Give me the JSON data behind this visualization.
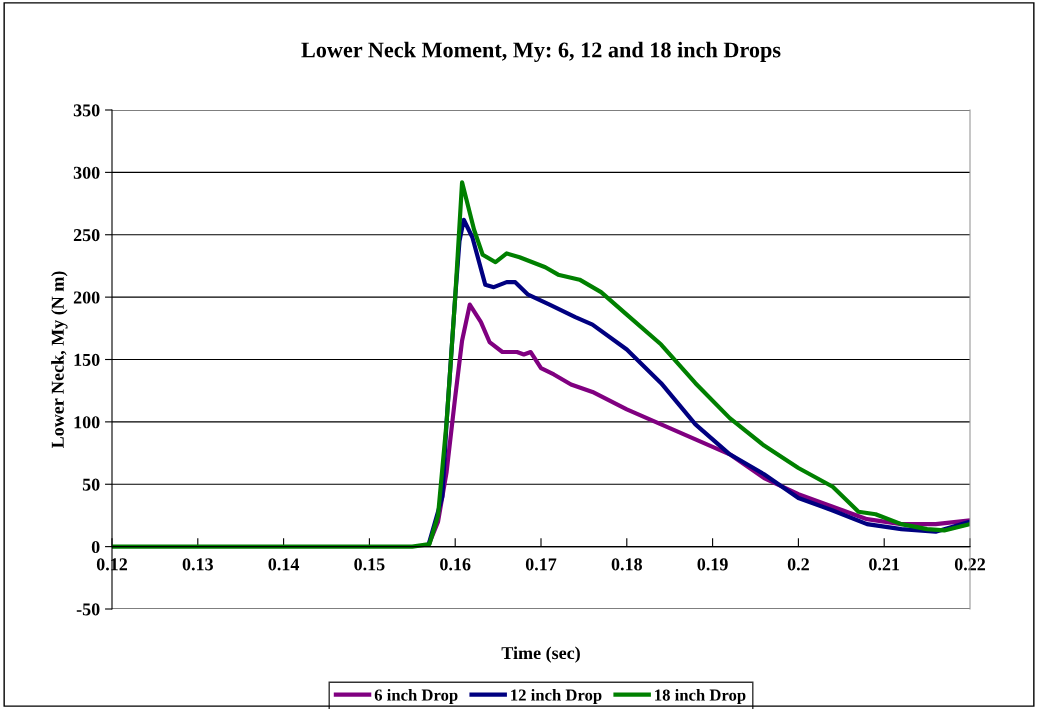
{
  "chart_data": {
    "type": "line",
    "title": "Lower Neck Moment, My: 6, 12 and 18 inch Drops",
    "xlabel": "Time (sec)",
    "ylabel": "Lower Neck, My (N m)",
    "xlim": [
      0.12,
      0.22
    ],
    "ylim": [
      -50,
      350
    ],
    "xticks": [
      0.12,
      0.13,
      0.14,
      0.15,
      0.16,
      0.17,
      0.18,
      0.19,
      0.2,
      0.21,
      0.22
    ],
    "yticks": [
      -50,
      0,
      50,
      100,
      150,
      200,
      250,
      300,
      350
    ],
    "grid": "y",
    "legend": "bottom",
    "marker": "none",
    "line_style": "solid",
    "series": [
      {
        "name": "6 inch Drop",
        "color": "#800080",
        "x": [
          0.157,
          0.158,
          0.159,
          0.16,
          0.1608,
          0.1617,
          0.163,
          0.164,
          0.1655,
          0.1672,
          0.168,
          0.1688,
          0.17,
          0.1715,
          0.1735,
          0.176,
          0.18,
          0.184,
          0.188,
          0.192,
          0.196,
          0.2,
          0.204,
          0.208,
          0.212,
          0.216,
          0.22
        ],
        "values": [
          3,
          20,
          60,
          120,
          165,
          194,
          180,
          164,
          156,
          156,
          154,
          156,
          143,
          138,
          130,
          124,
          110,
          98,
          86,
          74,
          55,
          42,
          32,
          22,
          18,
          18,
          21
        ]
      },
      {
        "name": "12 inch Drop",
        "color": "#000080",
        "x": [
          0.157,
          0.1585,
          0.159,
          0.16,
          0.1605,
          0.161,
          0.162,
          0.1635,
          0.1645,
          0.166,
          0.167,
          0.1685,
          0.171,
          0.174,
          0.176,
          0.18,
          0.184,
          0.188,
          0.192,
          0.196,
          0.2,
          0.204,
          0.208,
          0.212,
          0.216,
          0.22
        ],
        "values": [
          4,
          40,
          100,
          200,
          245,
          262,
          248,
          210,
          208,
          212,
          212,
          202,
          194,
          184,
          178,
          158,
          131,
          98,
          74,
          58,
          39,
          29,
          18,
          14,
          12,
          20
        ]
      },
      {
        "name": "18 inch Drop",
        "color": "#008000",
        "x": [
          0.12,
          0.15,
          0.155,
          0.157,
          0.158,
          0.159,
          0.16,
          0.1608,
          0.1622,
          0.1632,
          0.1647,
          0.166,
          0.1675,
          0.169,
          0.1705,
          0.172,
          0.1745,
          0.177,
          0.18,
          0.184,
          0.188,
          0.192,
          0.196,
          0.2,
          0.204,
          0.207,
          0.209,
          0.212,
          0.215,
          0.217,
          0.22
        ],
        "values": [
          0,
          0,
          0,
          2,
          25,
          100,
          200,
          292,
          254,
          234,
          228,
          235,
          232,
          228,
          224,
          218,
          214,
          204,
          186,
          162,
          131,
          103,
          81,
          63,
          48,
          28,
          26,
          18,
          14,
          13,
          18
        ]
      }
    ]
  }
}
